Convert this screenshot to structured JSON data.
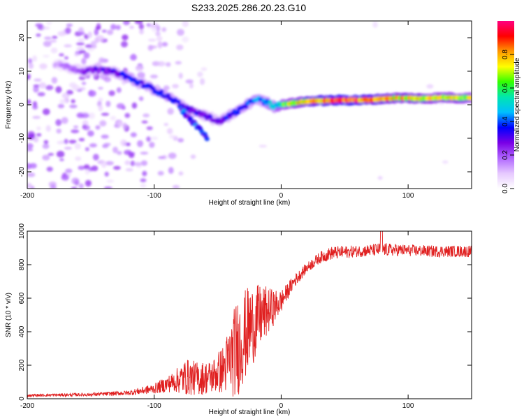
{
  "figure": {
    "title": "S233.2025.286.20.23.G10"
  },
  "chart_data": [
    {
      "type": "heatmap",
      "name": "spectrogram",
      "xlabel": "Height of straight line (km)",
      "ylabel": "Frequency (Hz)",
      "xlim": [
        -200,
        150
      ],
      "ylim": [
        -25,
        25
      ],
      "xticks": [
        "-200",
        "-100",
        "0",
        "100"
      ],
      "yticks": [
        "-20",
        "-10",
        "0",
        "10",
        "20"
      ],
      "colorbar": {
        "label": "Normalized spectral amplitude",
        "range": [
          0,
          1
        ],
        "ticks": [
          "0.0",
          "0.2",
          "0.4",
          "0.6",
          "0.8"
        ],
        "colors": [
          "#ffffff",
          "#e6c8ff",
          "#b066ff",
          "#7a00e6",
          "#0000ff",
          "#00bfff",
          "#00e6b0",
          "#33ff00",
          "#ffff00",
          "#ff9900",
          "#ff0000",
          "#ff0080"
        ]
      },
      "ridge": {
        "x": [
          -175,
          -165,
          -155,
          -145,
          -135,
          -125,
          -115,
          -105,
          -95,
          -85,
          -75,
          -65,
          -55,
          -50,
          -45,
          -40,
          -35,
          -30,
          -25,
          -20,
          -15,
          -10,
          -5,
          0,
          10,
          20,
          30,
          40,
          50,
          60,
          70,
          80,
          90,
          100,
          110,
          120,
          130,
          140,
          150
        ],
        "y": [
          12,
          11,
          10,
          10.5,
          10,
          9,
          7,
          5.5,
          3.5,
          1.5,
          -1,
          -2.5,
          -4,
          -5,
          -4.5,
          -3,
          -2,
          -1,
          0.5,
          2,
          1,
          0.5,
          -0.5,
          0,
          0.5,
          1,
          1.2,
          1.3,
          1.4,
          1.4,
          1.5,
          1.8,
          2,
          2,
          1.8,
          2,
          2.2,
          2,
          2.1
        ],
        "amplitude": [
          0.15,
          0.2,
          0.25,
          0.3,
          0.3,
          0.35,
          0.4,
          0.35,
          0.4,
          0.35,
          0.3,
          0.35,
          0.3,
          0.3,
          0.35,
          0.35,
          0.4,
          0.4,
          0.4,
          0.45,
          0.45,
          0.5,
          0.55,
          0.6,
          0.75,
          0.85,
          0.9,
          0.95,
          1.0,
          0.95,
          0.9,
          0.85,
          0.8,
          0.8,
          0.8,
          0.75,
          0.75,
          0.75,
          0.7
        ]
      },
      "branch": {
        "x": [
          -80,
          -75,
          -70,
          -65,
          -60,
          -58
        ],
        "y": [
          -1,
          -3,
          -5,
          -7,
          -9,
          -11
        ]
      }
    },
    {
      "type": "line",
      "name": "snr",
      "xlabel": "Height of straight line (km)",
      "ylabel": "SNR (10 * v/v)",
      "xlim": [
        -200,
        150
      ],
      "ylim": [
        0,
        1000
      ],
      "xticks": [
        "-200",
        "-100",
        "0",
        "100"
      ],
      "yticks": [
        "0",
        "200",
        "400",
        "600",
        "800",
        "1000"
      ],
      "color": "#e02020",
      "envelope": {
        "x": [
          -200,
          -150,
          -120,
          -100,
          -85,
          -75,
          -65,
          -55,
          -45,
          -35,
          -25,
          -15,
          -5,
          0,
          5,
          10,
          20,
          30,
          40,
          60,
          80,
          100,
          120,
          150
        ],
        "mean": [
          20,
          25,
          35,
          60,
          100,
          130,
          120,
          130,
          180,
          300,
          420,
          500,
          550,
          580,
          640,
          700,
          780,
          840,
          870,
          880,
          890,
          885,
          880,
          880
        ],
        "spread": [
          8,
          10,
          15,
          30,
          60,
          110,
          100,
          100,
          150,
          300,
          260,
          180,
          100,
          70,
          50,
          40,
          30,
          35,
          40,
          35,
          40,
          35,
          35,
          35
        ]
      }
    }
  ]
}
